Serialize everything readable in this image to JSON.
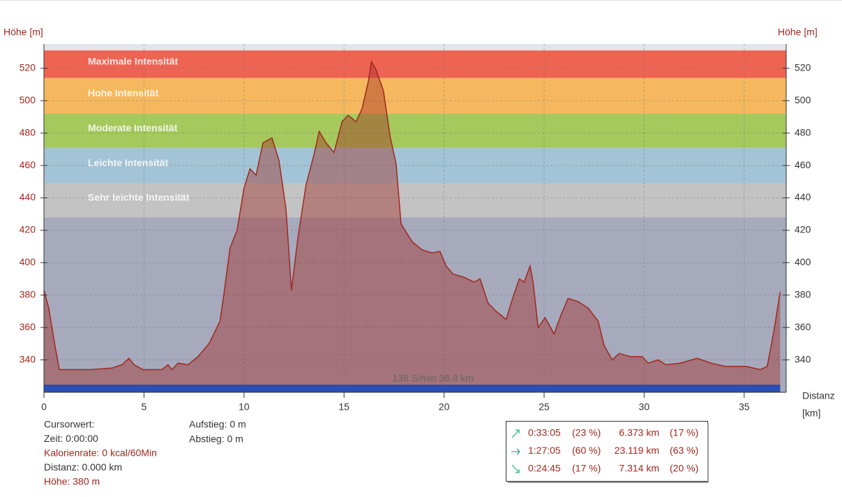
{
  "chart_data": {
    "type": "area",
    "y_label": "Höhe [m]",
    "y2_label": "Höhe [m]",
    "x_label": [
      "Distanz",
      "[km]"
    ],
    "xlim": [
      0,
      37.1
    ],
    "ylim": [
      320,
      535
    ],
    "xticks": [
      0,
      5,
      10,
      15,
      20,
      25,
      30,
      35
    ],
    "yticks": [
      340,
      360,
      380,
      400,
      420,
      440,
      460,
      480,
      500,
      520
    ],
    "grid": true,
    "bands": [
      {
        "name": "Maximale Intensität",
        "color": "#ee6352",
        "from": 514,
        "to": 531
      },
      {
        "name": "Hohe Intensität",
        "color": "#f5b85e",
        "from": 492,
        "to": 514
      },
      {
        "name": "Moderate Intensität",
        "color": "#a5c95c",
        "from": 471,
        "to": 492
      },
      {
        "name": "Leichte Intensität",
        "color": "#a3c4d6",
        "from": 449,
        "to": 471
      },
      {
        "name": "Sehr leichte Intensität",
        "color": "#c3c3c3",
        "from": 428,
        "to": 449
      }
    ],
    "x": [
      0,
      0.24,
      0.52,
      0.77,
      1.3,
      2.3,
      3.4,
      3.9,
      4.25,
      4.5,
      4.95,
      5.9,
      6.2,
      6.4,
      6.7,
      7.2,
      7.7,
      8.25,
      8.8,
      9.0,
      9.3,
      9.65,
      10.0,
      10.3,
      10.6,
      10.95,
      11.4,
      11.75,
      12.1,
      12.37,
      12.7,
      13.1,
      13.5,
      13.76,
      14.1,
      14.5,
      14.9,
      15.2,
      15.6,
      15.9,
      16.2,
      16.37,
      16.6,
      16.97,
      17.3,
      17.6,
      17.85,
      18.4,
      18.9,
      19.4,
      19.8,
      20.1,
      20.45,
      21.0,
      21.5,
      21.8,
      22.2,
      22.6,
      23.1,
      23.4,
      23.76,
      24.0,
      24.3,
      24.45,
      24.7,
      25.05,
      25.5,
      25.85,
      26.2,
      26.7,
      27.2,
      27.7,
      28.0,
      28.4,
      28.75,
      29.3,
      29.9,
      30.2,
      30.7,
      31.1,
      31.8,
      32.65,
      33.35,
      34.05,
      35.1,
      35.8,
      36.15,
      36.5,
      36.8
    ],
    "series": [
      {
        "color": "#a0281e",
        "values": [
          383,
          372,
          351,
          334,
          334,
          334,
          335,
          337,
          341,
          337,
          334,
          334,
          337,
          334,
          338,
          337,
          342,
          350,
          364,
          381,
          409,
          420,
          446,
          458,
          454,
          474,
          477,
          463,
          433,
          383,
          416,
          448,
          467,
          481,
          474,
          468,
          487,
          491,
          487,
          495,
          511,
          524,
          519,
          506,
          478,
          461,
          424,
          413,
          408,
          406,
          407,
          398,
          393,
          391,
          388,
          390,
          375,
          370,
          365,
          377,
          390,
          388,
          398,
          388,
          360,
          366,
          356,
          368,
          378,
          376,
          372,
          364,
          349,
          340,
          344,
          342,
          342,
          338,
          340,
          337,
          338,
          341,
          338,
          336,
          336,
          334,
          336,
          359,
          382
        ]
      }
    ],
    "footer_label": "138 S/min 36.8 km",
    "info_left": [
      {
        "text": "Cursorwert:",
        "color": "#333"
      },
      {
        "text": "Zeit: 0:00:00",
        "color": "#333"
      },
      {
        "text": "Kalorienrate: 0 kcal/60Min",
        "color": "#a0281e"
      },
      {
        "text": "Distanz: 0.000 km",
        "color": "#333"
      },
      {
        "text": "Höhe:  380 m",
        "color": "#a0281e"
      }
    ],
    "info_mid": [
      "Aufstieg: 0 m",
      "Abstieg: 0 m"
    ],
    "stats": [
      [
        "0:33:05",
        "(23 %)",
        "6.373 km",
        "(17 %)"
      ],
      [
        "1:27:05",
        "(60 %)",
        "23.119 km",
        "(63 %)"
      ],
      [
        "0:24:45",
        "(17 %)",
        "7.314 km",
        "(20 %)"
      ]
    ]
  }
}
